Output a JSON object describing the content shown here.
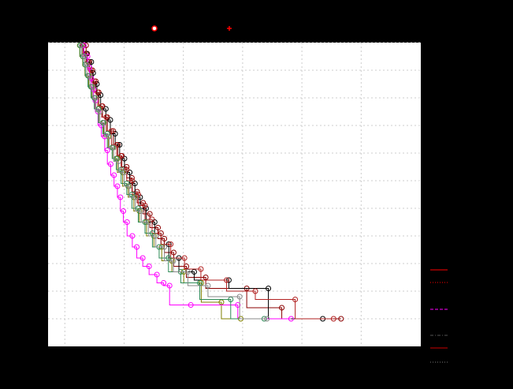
{
  "figure": {
    "background": "#000000",
    "plot_background": "#ffffff",
    "grid_color": "#cccccc"
  },
  "legend_top": [
    {
      "marker": "circle-icon",
      "color": "#ff0000"
    },
    {
      "marker": "plus-icon",
      "color": "#ff0000"
    }
  ],
  "legend_right": [
    {
      "line_style": "solid",
      "color": "#ff0000"
    },
    {
      "line_style": "dotted",
      "color": "#ff0000"
    },
    {
      "line_style": "dashed",
      "color": "#ff00ff"
    },
    {
      "line_style": "dashdot",
      "color": "#555555"
    },
    {
      "line_style": "solid",
      "color": "#cc0000"
    },
    {
      "line_style": "dotted",
      "color": "#777777"
    }
  ],
  "chart_data": {
    "type": "line",
    "title": "",
    "xlabel": "",
    "ylabel": "",
    "xlim": [
      0,
      100
    ],
    "ylim": [
      0,
      11
    ],
    "grid": true,
    "x_gridlines": [
      4.5,
      20.4,
      36.3,
      52.2,
      68.1,
      84.0
    ],
    "y_gridlines": [
      1,
      2,
      3,
      4,
      5,
      6,
      7,
      8,
      9,
      10,
      11
    ],
    "series": [
      {
        "color": "#8b0000",
        "marker": "circle",
        "x": [
          10.2,
          10.5,
          11.1,
          11.9,
          12.8,
          13.6,
          14.6,
          15.9,
          17.5,
          18.7,
          19.8,
          21.1,
          22.5,
          23.9,
          25.5,
          27.3,
          29.5,
          31.2,
          33.7,
          37.1,
          42.3,
          53.3,
          62.7,
          78.6
        ],
        "y": [
          10.9,
          10.6,
          10.3,
          10.0,
          9.6,
          9.2,
          8.7,
          8.3,
          7.8,
          7.3,
          6.9,
          6.5,
          6.1,
          5.6,
          5.2,
          4.8,
          4.3,
          3.9,
          3.4,
          2.9,
          2.5,
          2.1,
          1.4,
          1.0
        ]
      },
      {
        "color": "#000000",
        "marker": "circle",
        "x": [
          9.5,
          10.3,
          11.6,
          12.1,
          13.1,
          14.1,
          15.5,
          16.7,
          18.0,
          19.2,
          20.5,
          21.9,
          23.3,
          24.7,
          26.3,
          28.6,
          30.3,
          32.4,
          35.1,
          39.2,
          48.5,
          59.1,
          73.7
        ],
        "y": [
          10.9,
          10.6,
          10.3,
          9.9,
          9.5,
          9.1,
          8.6,
          8.2,
          7.7,
          7.3,
          6.8,
          6.3,
          5.9,
          5.4,
          5.0,
          4.5,
          4.1,
          3.7,
          3.2,
          2.7,
          2.4,
          2.1,
          1.0
        ]
      },
      {
        "color": "#b22222",
        "marker": "circle",
        "x": [
          9.3,
          9.9,
          10.8,
          11.5,
          12.4,
          13.3,
          14.4,
          15.6,
          17.0,
          18.4,
          19.6,
          21.1,
          22.6,
          24.2,
          26.0,
          27.9,
          30.3,
          32.9,
          36.6,
          41.0,
          47.9,
          55.6,
          66.3,
          76.6
        ],
        "y": [
          10.9,
          10.6,
          10.3,
          10.0,
          9.6,
          9.2,
          8.7,
          8.3,
          7.8,
          7.3,
          6.9,
          6.4,
          6.0,
          5.5,
          5.1,
          4.6,
          4.1,
          3.7,
          3.2,
          2.8,
          2.4,
          2.0,
          1.7,
          1.0
        ]
      },
      {
        "color": "#808000",
        "marker": "circle",
        "x": [
          8.5,
          9.3,
          9.9,
          10.9,
          11.7,
          12.5,
          13.6,
          14.9,
          16.2,
          17.3,
          18.6,
          20.0,
          21.5,
          23.0,
          24.5,
          26.4,
          28.4,
          30.5,
          33.2,
          36.4,
          41.1,
          46.5,
          51.7
        ],
        "y": [
          10.9,
          10.5,
          10.2,
          9.8,
          9.4,
          9.0,
          8.6,
          8.1,
          7.6,
          7.2,
          6.8,
          6.3,
          5.8,
          5.4,
          4.9,
          4.5,
          4.0,
          3.6,
          3.1,
          2.7,
          2.3,
          1.6,
          1.0
        ]
      },
      {
        "color": "#ff00ff",
        "marker": "circle",
        "x": [
          9.6,
          10.6,
          11.1,
          11.6,
          12.2,
          12.7,
          13.4,
          14.3,
          15.2,
          15.9,
          16.8,
          17.7,
          18.6,
          19.4,
          20.2,
          21.2,
          22.6,
          23.8,
          25.4,
          27.1,
          29.2,
          31.0,
          32.6,
          38.3,
          50.9,
          65.2
        ],
        "y": [
          10.9,
          10.5,
          10.1,
          9.7,
          9.3,
          8.9,
          8.5,
          8.0,
          7.6,
          7.1,
          6.6,
          6.2,
          5.8,
          5.4,
          4.9,
          4.5,
          4.0,
          3.6,
          3.2,
          2.9,
          2.6,
          2.3,
          2.2,
          1.5,
          1.5,
          1.0
        ]
      },
      {
        "color": "#2e8b57",
        "marker": "circle",
        "x": [
          8.6,
          9.4,
          10.0,
          10.7,
          11.5,
          12.4,
          13.5,
          14.7,
          15.9,
          17.2,
          18.3,
          19.6,
          21.1,
          22.5,
          24.2,
          26.0,
          28.0,
          29.8,
          32.3,
          35.6,
          40.7,
          49.0,
          58.0
        ],
        "y": [
          10.9,
          10.5,
          10.2,
          9.8,
          9.4,
          9.0,
          8.6,
          8.1,
          7.7,
          7.2,
          6.8,
          6.4,
          5.9,
          5.5,
          5.0,
          4.5,
          4.1,
          3.6,
          3.2,
          2.7,
          2.3,
          1.7,
          1.0
        ]
      },
      {
        "color": "#888888",
        "marker": "circle",
        "x": [
          9.0,
          9.8,
          10.4,
          11.2,
          12.0,
          12.8,
          13.9,
          15.1,
          16.4,
          17.6,
          18.9,
          20.4,
          21.8,
          23.4,
          25.0,
          26.9,
          28.9,
          31.2,
          33.6,
          37.5,
          42.9,
          51.4,
          58.7
        ],
        "y": [
          10.9,
          10.5,
          10.2,
          9.8,
          9.4,
          9.0,
          8.5,
          8.1,
          7.6,
          7.2,
          6.7,
          6.3,
          5.8,
          5.4,
          4.9,
          4.5,
          4.0,
          3.6,
          3.1,
          2.7,
          2.2,
          1.8,
          1.0
        ]
      }
    ]
  }
}
